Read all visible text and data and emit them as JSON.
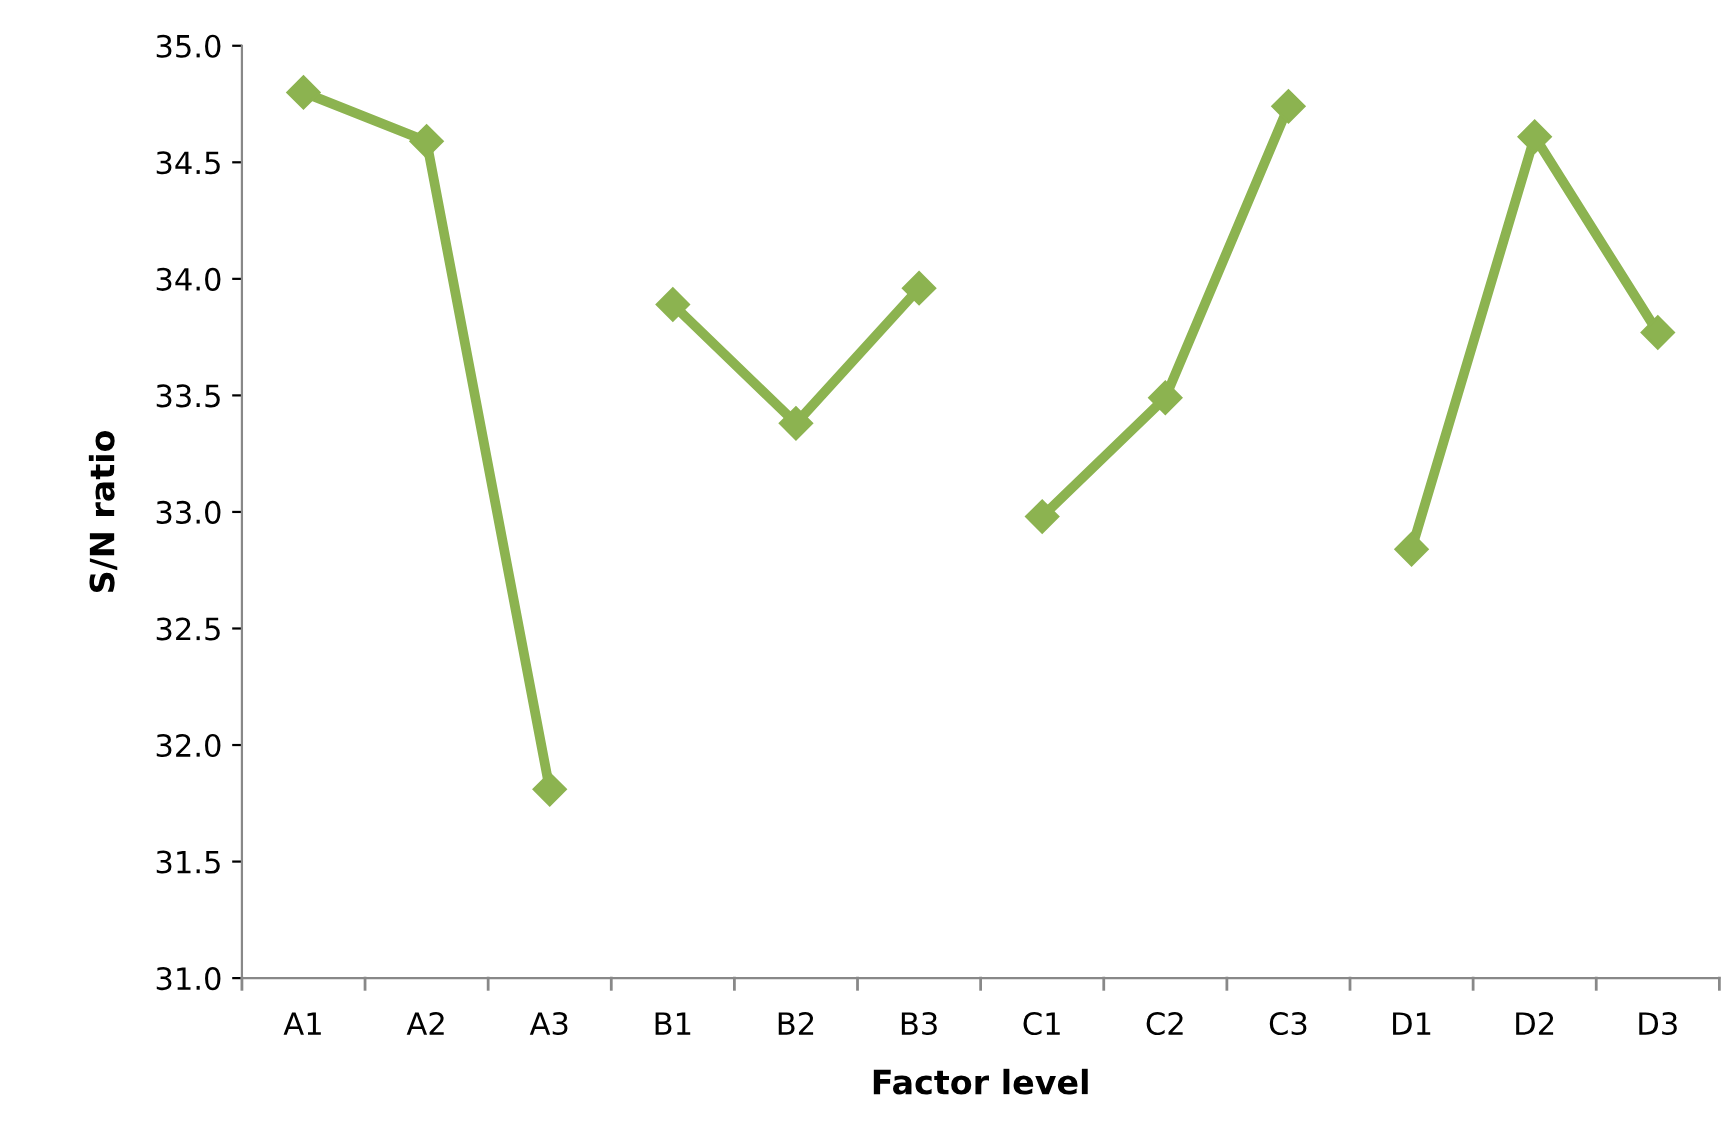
{
  "chart_data": {
    "type": "line",
    "xlabel": "Factor level",
    "ylabel": "S/N ratio",
    "categories": [
      "A1",
      "A2",
      "A3",
      "B1",
      "B2",
      "B3",
      "C1",
      "C2",
      "C3",
      "D1",
      "D2",
      "D3"
    ],
    "series": [
      {
        "color": "#8cb350",
        "values": [
          34.8,
          34.59,
          31.81,
          null,
          null,
          null,
          null,
          null,
          null,
          null,
          null,
          null
        ]
      },
      {
        "color": "#8cb350",
        "values": [
          null,
          null,
          null,
          33.89,
          33.38,
          33.96,
          null,
          null,
          null,
          null,
          null,
          null
        ]
      },
      {
        "color": "#8cb350",
        "values": [
          null,
          null,
          null,
          null,
          null,
          null,
          32.98,
          33.49,
          34.74,
          null,
          null,
          null
        ]
      },
      {
        "color": "#8cb350",
        "values": [
          null,
          null,
          null,
          null,
          null,
          null,
          null,
          null,
          null,
          32.84,
          34.61,
          33.77
        ]
      }
    ],
    "ylim": [
      31.0,
      35.0
    ],
    "yticks": [
      {
        "value": 31.0,
        "label": "31.0"
      },
      {
        "value": 31.5,
        "label": "31.5"
      },
      {
        "value": 32.0,
        "label": "32.0"
      },
      {
        "value": 32.5,
        "label": "32.5"
      },
      {
        "value": 33.0,
        "label": "33.0"
      },
      {
        "value": 33.5,
        "label": "33.5"
      },
      {
        "value": 34.0,
        "label": "34.0"
      },
      {
        "value": 34.5,
        "label": "34.5"
      },
      {
        "value": 35.0,
        "label": "35.0"
      }
    ],
    "grid": false,
    "marker": "diamond",
    "line_style": "solid"
  }
}
